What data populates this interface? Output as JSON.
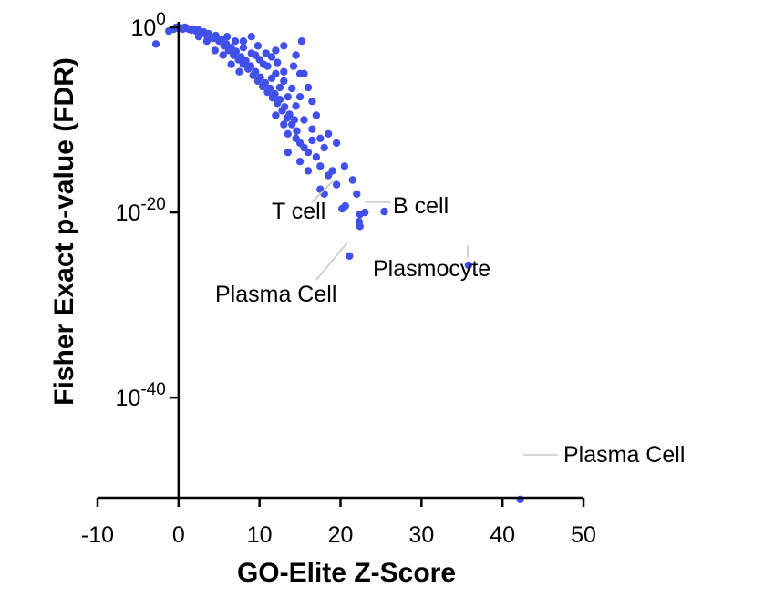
{
  "chart_data": {
    "type": "scatter",
    "xlabel": "GO-Elite Z-Score",
    "ylabel": "Fisher Exact p-value (FDR)",
    "xlim": [
      -10,
      50
    ],
    "ylim_log10": [
      -52,
      0
    ],
    "y_scale": "log10",
    "grid": false,
    "point_color": "#4050e8",
    "x_ticks": [
      -10,
      0,
      10,
      20,
      30,
      40,
      50
    ],
    "x_tick_labels": [
      "-10",
      "0",
      "10",
      "20",
      "30",
      "40",
      "50"
    ],
    "y_ticks": [
      {
        "base": "10",
        "exponent": "0",
        "log10": 0
      },
      {
        "base": "10",
        "exponent": "-20",
        "log10": -20
      },
      {
        "base": "10",
        "exponent": "-40",
        "log10": -40
      }
    ],
    "annotations": [
      {
        "label": "T cell",
        "x": 20.2,
        "y_log10": -19.6
      },
      {
        "label": "B cell",
        "x": 22.1,
        "y_log10": -20.3
      },
      {
        "label": "Plasma Cell",
        "x": 21.0,
        "y_log10": -24.7
      },
      {
        "label": "Plasmocyte",
        "x": 35.8,
        "y_log10": -25.7
      },
      {
        "label": "Plasma Cell",
        "x": 42.2,
        "y_log10": -51.0
      }
    ],
    "points": [
      [
        -2.8,
        -1.8
      ],
      [
        -1.2,
        -0.4
      ],
      [
        -0.6,
        -0.2
      ],
      [
        -0.3,
        0.0
      ],
      [
        0.0,
        -0.1
      ],
      [
        0.2,
        -0.05
      ],
      [
        0.5,
        -0.2
      ],
      [
        0.8,
        0.0
      ],
      [
        1.0,
        -0.1
      ],
      [
        1.3,
        -0.2
      ],
      [
        1.6,
        -0.3
      ],
      [
        1.9,
        -0.2
      ],
      [
        2.2,
        -0.4
      ],
      [
        2.5,
        -0.3
      ],
      [
        2.8,
        -0.6
      ],
      [
        3.1,
        -0.5
      ],
      [
        3.4,
        -0.8
      ],
      [
        3.7,
        -0.7
      ],
      [
        4.0,
        -1.0
      ],
      [
        4.3,
        -1.2
      ],
      [
        4.6,
        -0.9
      ],
      [
        5.0,
        -1.5
      ],
      [
        5.3,
        -1.3
      ],
      [
        5.6,
        -2.0
      ],
      [
        5.9,
        -1.8
      ],
      [
        6.2,
        -2.5
      ],
      [
        6.5,
        -2.2
      ],
      [
        6.8,
        -3.0
      ],
      [
        7.1,
        -2.6
      ],
      [
        7.4,
        -3.5
      ],
      [
        7.7,
        -3.2
      ],
      [
        8.0,
        -4.0
      ],
      [
        8.3,
        -3.6
      ],
      [
        8.6,
        -4.5
      ],
      [
        8.9,
        -4.2
      ],
      [
        9.2,
        -5.2
      ],
      [
        9.5,
        -4.8
      ],
      [
        9.8,
        -5.8
      ],
      [
        10.1,
        -5.4
      ],
      [
        10.4,
        -6.4
      ],
      [
        10.7,
        -6.0
      ],
      [
        11.0,
        -7.0
      ],
      [
        11.3,
        -6.6
      ],
      [
        11.6,
        -7.6
      ],
      [
        11.9,
        -7.2
      ],
      [
        12.2,
        -8.2
      ],
      [
        12.5,
        -7.8
      ],
      [
        12.8,
        -9.0
      ],
      [
        13.1,
        -8.6
      ],
      [
        13.4,
        -9.8
      ],
      [
        13.7,
        -9.4
      ],
      [
        14.0,
        -10.5
      ],
      [
        14.3,
        -10.0
      ],
      [
        14.6,
        -11.2
      ],
      [
        6.0,
        -1.0
      ],
      [
        7.0,
        -1.5
      ],
      [
        8.0,
        -2.2
      ],
      [
        9.0,
        -2.8
      ],
      [
        10.0,
        -3.5
      ],
      [
        11.0,
        -4.2
      ],
      [
        12.0,
        -5.0
      ],
      [
        13.0,
        -5.8
      ],
      [
        14.0,
        -6.6
      ],
      [
        15.0,
        -7.5
      ],
      [
        6.5,
        -4.0
      ],
      [
        7.5,
        -4.8
      ],
      [
        9.5,
        -3.0
      ],
      [
        10.5,
        -4.0
      ],
      [
        11.5,
        -5.5
      ],
      [
        12.5,
        -6.5
      ],
      [
        13.5,
        -7.5
      ],
      [
        14.5,
        -8.5
      ],
      [
        5.5,
        -3.0
      ],
      [
        4.5,
        -2.5
      ],
      [
        3.5,
        -1.5
      ],
      [
        2.5,
        -1.0
      ],
      [
        9.8,
        -2.0
      ],
      [
        10.8,
        -2.8
      ],
      [
        11.5,
        -3.2
      ],
      [
        12.2,
        -3.8
      ],
      [
        13.0,
        -4.8
      ],
      [
        15.0,
        -5.0
      ],
      [
        16.0,
        -6.5
      ],
      [
        16.5,
        -8.0
      ],
      [
        12.0,
        -9.5
      ],
      [
        13.0,
        -10.5
      ],
      [
        13.5,
        -11.5
      ],
      [
        14.5,
        -12.0
      ],
      [
        15.0,
        -12.5
      ],
      [
        15.5,
        -13.0
      ],
      [
        16.0,
        -13.5
      ],
      [
        16.5,
        -12.2
      ],
      [
        17.0,
        -14.0
      ],
      [
        15.5,
        -10.0
      ],
      [
        16.5,
        -11.0
      ],
      [
        17.5,
        -12.0
      ],
      [
        18.0,
        -13.0
      ],
      [
        18.5,
        -11.5
      ],
      [
        19.5,
        -12.5
      ],
      [
        17.0,
        -9.5
      ],
      [
        13.5,
        -13.5
      ],
      [
        15.0,
        -14.5
      ],
      [
        16.0,
        -15.5
      ],
      [
        17.5,
        -15.0
      ],
      [
        18.5,
        -16.0
      ],
      [
        19.0,
        -15.5
      ],
      [
        19.5,
        -17.0
      ],
      [
        17.5,
        -17.5
      ],
      [
        20.5,
        -15.0
      ],
      [
        21.5,
        -16.5
      ],
      [
        22.0,
        -18.0
      ],
      [
        18.0,
        -18.0
      ],
      [
        15.5,
        -5.0
      ],
      [
        14.2,
        -4.2
      ],
      [
        14.5,
        -3.0
      ],
      [
        12.0,
        -2.5
      ],
      [
        13.0,
        -2.0
      ],
      [
        15.2,
        -1.5
      ],
      [
        9.0,
        -1.0
      ],
      [
        8.0,
        -1.5
      ],
      [
        20.6,
        -19.3
      ],
      [
        20.2,
        -19.6
      ],
      [
        22.4,
        -20.2
      ],
      [
        25.4,
        -19.9
      ],
      [
        21.1,
        -24.7
      ],
      [
        22.3,
        -21.0
      ],
      [
        22.4,
        -21.5
      ],
      [
        23.0,
        -20.0
      ],
      [
        35.8,
        -25.7
      ],
      [
        42.2,
        -51.0
      ]
    ]
  }
}
